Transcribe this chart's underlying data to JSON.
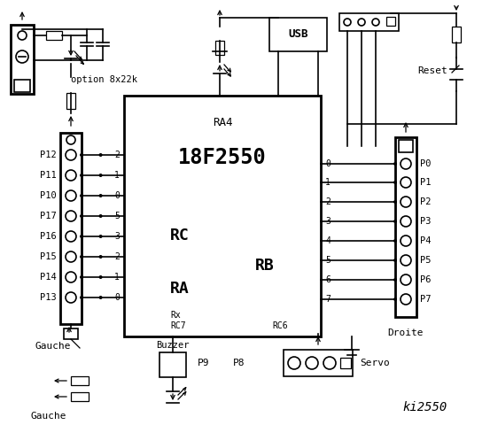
{
  "bg_color": "#ffffff",
  "title": "ki2550",
  "chip_label": "18F2550",
  "chip_sublabel": "RA4",
  "rc_label": "RC",
  "ra_label": "RA",
  "rb_label": "RB",
  "rc_pins": [
    "2",
    "1",
    "0",
    "5",
    "3",
    "2",
    "1",
    "0"
  ],
  "rb_pins": [
    "0",
    "1",
    "2",
    "3",
    "4",
    "5",
    "6",
    "7"
  ],
  "left_labels": [
    "P12",
    "P11",
    "P10",
    "P17",
    "P16",
    "P15",
    "P14",
    "P13"
  ],
  "right_labels": [
    "P0",
    "P1",
    "P2",
    "P3",
    "P4",
    "P5",
    "P6",
    "P7"
  ],
  "usb_label": "USB",
  "rc6_label": "RC6",
  "rx_label": "Rx",
  "rc7_label": "RC7",
  "gauche_label": "Gauche",
  "droite_label": "Droite",
  "buzzer_label": "Buzzer",
  "servo_label": "Servo",
  "p9_label": "P9",
  "p8_label": "P8",
  "reset_label": "Reset",
  "option_label": "option 8x22k"
}
